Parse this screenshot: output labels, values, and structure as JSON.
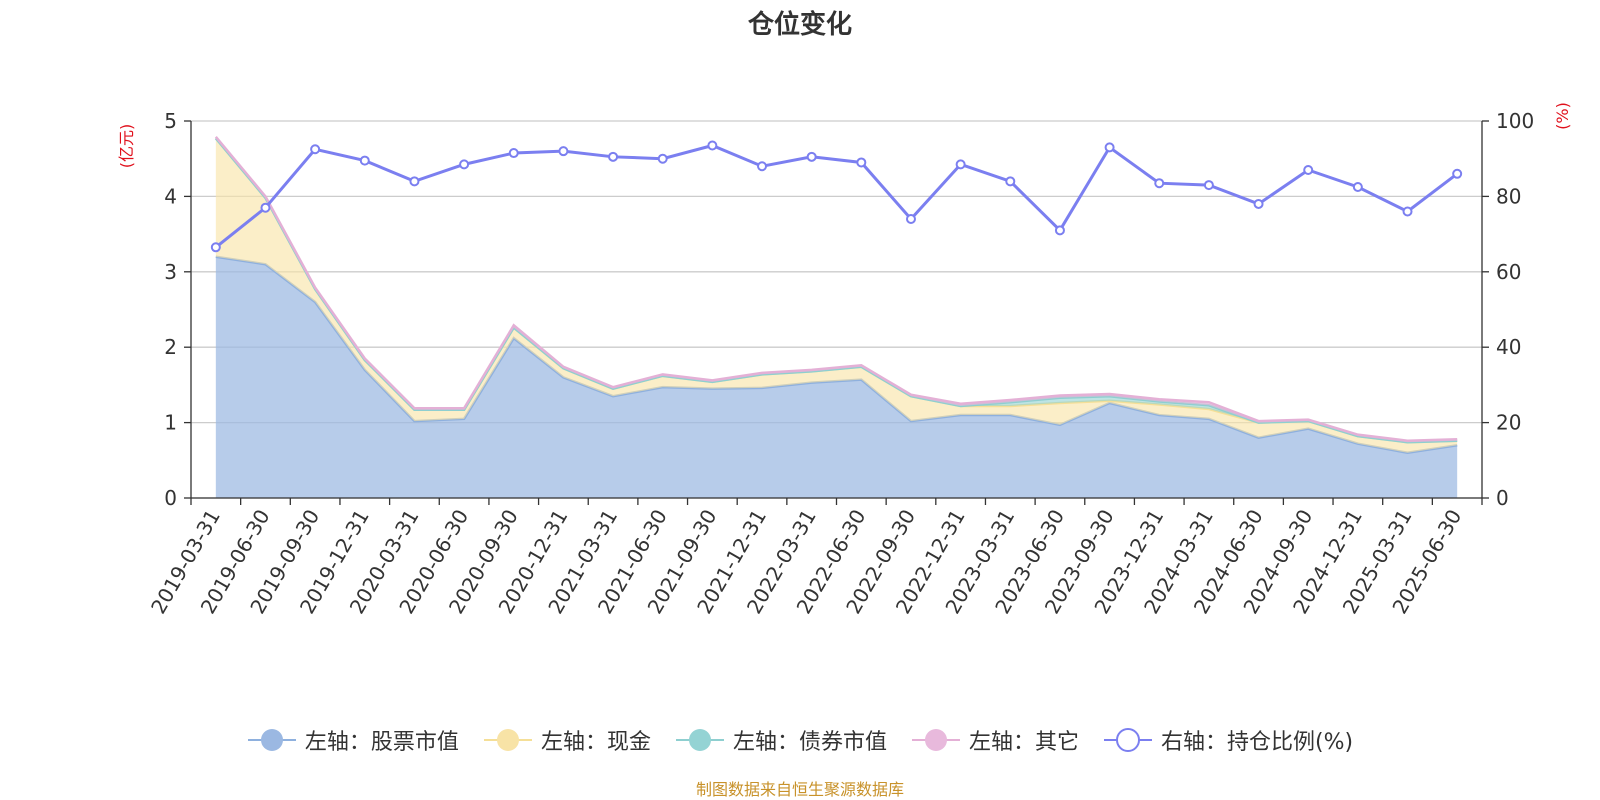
{
  "chart_data": {
    "type": "area",
    "title": "仓位变化",
    "left_axis_label": "(亿元)",
    "right_axis_label": "(%)",
    "ylim_left": [
      0,
      5
    ],
    "yticks_left": [
      "0",
      "1",
      "2",
      "3",
      "4",
      "5"
    ],
    "ylim_right": [
      0,
      100
    ],
    "yticks_right": [
      "0",
      "20",
      "40",
      "60",
      "80",
      "100"
    ],
    "grid": true,
    "legend_position": "bottom",
    "categories": [
      "2019-03-31",
      "2019-06-30",
      "2019-09-30",
      "2019-12-31",
      "2020-03-31",
      "2020-06-30",
      "2020-09-30",
      "2020-12-31",
      "2021-03-31",
      "2021-06-30",
      "2021-09-30",
      "2021-12-31",
      "2022-03-31",
      "2022-06-30",
      "2022-09-30",
      "2022-12-31",
      "2023-03-31",
      "2023-06-30",
      "2023-09-30",
      "2023-12-31",
      "2024-03-31",
      "2024-06-30",
      "2024-09-30",
      "2024-12-31",
      "2025-03-31",
      "2025-06-30"
    ],
    "series": [
      {
        "name": "左轴：股票市值",
        "axis": "left",
        "color": "#9bb8e2",
        "values": [
          3.2,
          3.1,
          2.6,
          1.7,
          1.02,
          1.05,
          2.12,
          1.6,
          1.35,
          1.47,
          1.45,
          1.46,
          1.53,
          1.57,
          1.02,
          1.1,
          1.1,
          0.97,
          1.26,
          1.1,
          1.05,
          0.8,
          0.92,
          0.72,
          0.6,
          0.7
        ]
      },
      {
        "name": "左轴：现金",
        "axis": "left",
        "color": "#f8e3a6",
        "values": [
          1.57,
          0.88,
          0.17,
          0.13,
          0.15,
          0.12,
          0.14,
          0.12,
          0.1,
          0.15,
          0.09,
          0.18,
          0.15,
          0.17,
          0.33,
          0.12,
          0.12,
          0.29,
          0.03,
          0.14,
          0.13,
          0.2,
          0.1,
          0.1,
          0.14,
          0.06
        ]
      },
      {
        "name": "左轴：债券市值",
        "axis": "left",
        "color": "#94d3d4",
        "values": [
          0,
          0,
          0,
          0,
          0,
          0,
          0,
          0,
          0,
          0,
          0,
          0,
          0,
          0,
          0,
          0,
          0.05,
          0.07,
          0.06,
          0.04,
          0.05,
          0,
          0,
          0,
          0,
          0
        ]
      },
      {
        "name": "左轴：其它",
        "axis": "left",
        "color": "#e8b9dc",
        "values": [
          0.02,
          0.02,
          0.02,
          0.02,
          0.02,
          0.02,
          0.03,
          0.02,
          0.02,
          0.02,
          0.02,
          0.02,
          0.02,
          0.02,
          0.02,
          0.03,
          0.03,
          0.03,
          0.03,
          0.03,
          0.04,
          0.02,
          0.02,
          0.02,
          0.02,
          0.02
        ]
      },
      {
        "name": "右轴：持仓比例(%)",
        "axis": "right",
        "color": "#7b7ff0",
        "values": [
          66.5,
          77,
          92.5,
          89.5,
          84,
          88.5,
          91.5,
          92,
          90.5,
          90,
          93.5,
          88,
          90.5,
          89,
          74,
          88.5,
          84,
          71,
          93,
          83.5,
          83,
          78,
          87,
          82.5,
          76,
          86
        ]
      }
    ],
    "source": "制图数据来自恒生聚源数据库"
  }
}
